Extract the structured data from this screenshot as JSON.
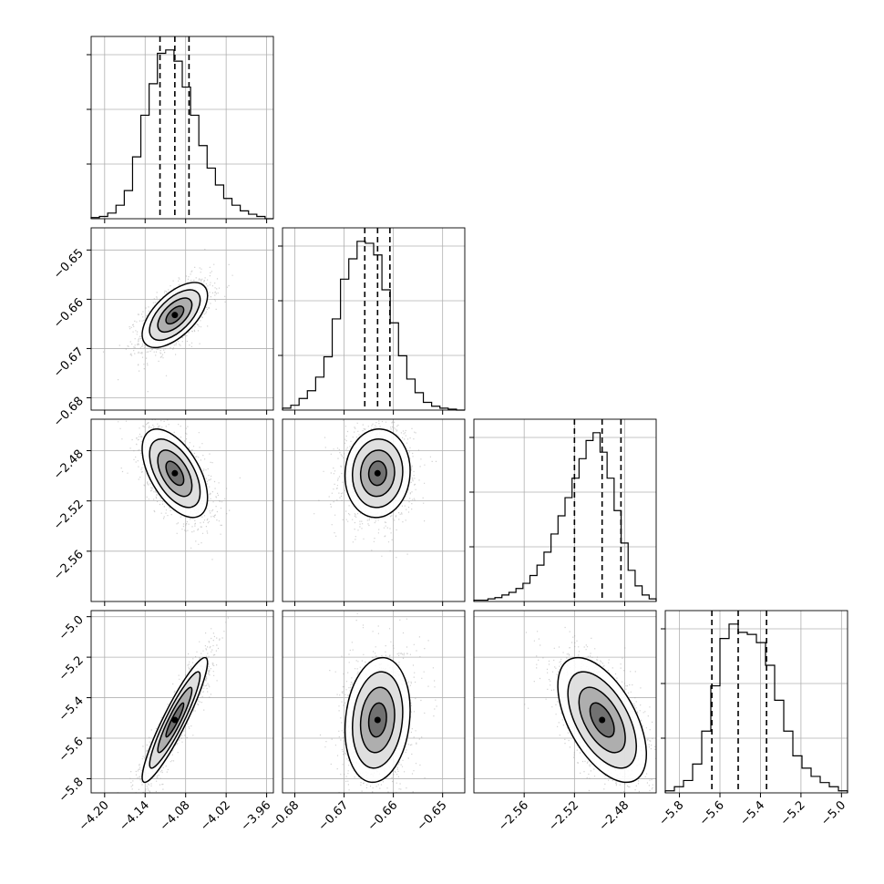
{
  "chart_data": {
    "type": "corner",
    "grid": true,
    "quantile_lines": [
      0.16,
      0.5,
      0.84
    ],
    "params": [
      {
        "ticks": [
          "−4.20",
          "−4.14",
          "−4.08",
          "−4.02",
          "−3.96"
        ],
        "tick_values": [
          -4.2,
          -4.14,
          -4.08,
          -4.02,
          -3.96
        ],
        "range": [
          -4.22,
          -3.95
        ],
        "median": -4.096,
        "q16": -4.118,
        "q84": -4.075,
        "std": 0.022
      },
      {
        "ticks": [
          "−0.68",
          "−0.67",
          "−0.66",
          "−0.65"
        ],
        "tick_values": [
          -0.68,
          -0.67,
          -0.66,
          -0.65
        ],
        "range": [
          -0.6825,
          -0.6455
        ],
        "median": -0.6632,
        "q16": -0.6658,
        "q84": -0.6607,
        "std": 0.003
      },
      {
        "ticks": [
          "−2.56",
          "−2.52",
          "−2.48"
        ],
        "tick_values": [
          -2.56,
          -2.52,
          -2.48
        ],
        "range": [
          -2.6,
          -2.455
        ],
        "median": -2.498,
        "q16": -2.52,
        "q84": -2.483,
        "std": 0.016
      },
      {
        "ticks": [
          "−5.8",
          "−5.6",
          "−5.4",
          "−5.2",
          "−5.0"
        ],
        "tick_values": [
          -5.8,
          -5.6,
          -5.4,
          -5.2,
          -5.0
        ],
        "range": [
          -5.87,
          -4.97
        ],
        "median": -5.51,
        "q16": -5.64,
        "q84": -5.37,
        "std": 0.14
      }
    ],
    "correlations": {
      "1,0": 0.6,
      "2,0": -0.55,
      "2,1": 0.05,
      "3,0": 0.92,
      "3,1": 0.15,
      "3,2": -0.55
    },
    "histograms": [
      [
        1,
        2,
        5,
        12,
        25,
        55,
        92,
        120,
        147,
        150,
        140,
        117,
        92,
        65,
        45,
        30,
        18,
        12,
        7,
        4,
        2,
        0
      ],
      [
        2,
        5,
        12,
        20,
        34,
        55,
        94,
        135,
        156,
        174,
        172,
        160,
        124,
        90,
        56,
        32,
        18,
        8,
        4,
        2,
        1,
        0
      ],
      [
        1,
        1,
        2,
        3,
        5,
        7,
        10,
        14,
        20,
        28,
        38,
        52,
        66,
        80,
        95,
        110,
        124,
        130,
        115,
        95,
        70,
        45,
        24,
        12,
        5,
        2
      ],
      [
        1,
        3,
        6,
        14,
        30,
        52,
        75,
        82,
        78,
        77,
        73,
        62,
        45,
        30,
        18,
        12,
        8,
        5,
        3,
        1
      ]
    ]
  }
}
